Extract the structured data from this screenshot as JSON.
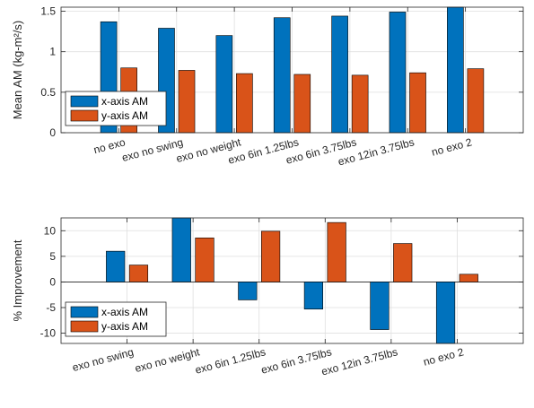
{
  "chart_data": [
    {
      "type": "bar",
      "ylabel": "Mean AM (kg-m²/s)",
      "ylim": [
        0,
        1.55
      ],
      "yticks": [
        0,
        0.5,
        1,
        1.5
      ],
      "ytick_labels": [
        "0",
        "0.5",
        "1",
        "1.5"
      ],
      "grid": true,
      "legend_position": "middle-left",
      "categories": [
        "no exo",
        "exo no swing",
        "exo no weight",
        "exo 6in 1.25lbs",
        "exo 6in 3.75lbs",
        "exo 12in 3.75lbs",
        "no exo 2"
      ],
      "series": [
        {
          "name": "x-axis AM",
          "color": "#0072BD",
          "values": [
            1.37,
            1.29,
            1.2,
            1.42,
            1.44,
            1.49,
            1.55
          ]
        },
        {
          "name": "y-axis AM",
          "color": "#D95319",
          "values": [
            0.8,
            0.77,
            0.73,
            0.72,
            0.71,
            0.74,
            0.79
          ]
        }
      ]
    },
    {
      "type": "bar",
      "ylabel": "% Improvement",
      "ylim": [
        -12,
        12.5
      ],
      "yticks": [
        -10,
        -5,
        0,
        5,
        10
      ],
      "ytick_labels": [
        "-10",
        "-5",
        "0",
        "5",
        "10"
      ],
      "grid": true,
      "legend_position": "bottom-left",
      "categories": [
        "exo no swing",
        "exo no weight",
        "exo 6in 1.25lbs",
        "exo 6in 3.75lbs",
        "exo 12in 3.75lbs",
        "no exo 2"
      ],
      "series": [
        {
          "name": "x-axis AM",
          "color": "#0072BD",
          "values": [
            6.0,
            12.5,
            -3.5,
            -5.3,
            -9.3,
            -12.0
          ]
        },
        {
          "name": "y-axis AM",
          "color": "#D95319",
          "values": [
            3.3,
            8.6,
            9.9,
            11.6,
            7.5,
            1.5
          ]
        }
      ]
    }
  ]
}
